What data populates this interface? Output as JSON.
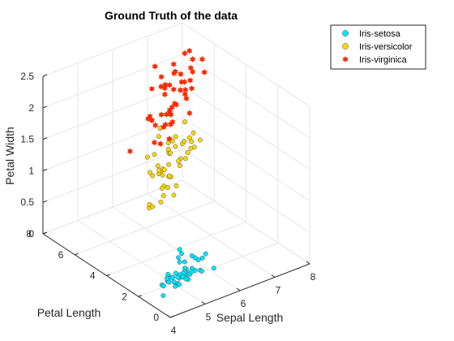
{
  "chart_data": {
    "type": "scatter",
    "title": "Ground Truth of the data",
    "xlabel": "Sepal Length",
    "ylabel": "Petal Length",
    "zlabel": "Petal Width",
    "xlim": [
      4,
      8
    ],
    "ylim": [
      0,
      8
    ],
    "zlim": [
      0,
      2.5
    ],
    "xticks": [
      "4",
      "5",
      "6",
      "7",
      "8"
    ],
    "yticks": [
      "0",
      "2",
      "4",
      "6",
      "8"
    ],
    "zticks": [
      "0",
      "0.5",
      "1",
      "1.5",
      "2",
      "2.5"
    ],
    "grid": true,
    "legend_position": "top-right",
    "series": [
      {
        "name": "Iris-setosa",
        "marker": "circle",
        "color": "#00e5ff",
        "points": [
          [
            5.1,
            1.4,
            0.2
          ],
          [
            4.9,
            1.4,
            0.2
          ],
          [
            4.7,
            1.3,
            0.2
          ],
          [
            4.6,
            1.5,
            0.2
          ],
          [
            5.0,
            1.4,
            0.2
          ],
          [
            5.4,
            1.7,
            0.4
          ],
          [
            4.6,
            1.4,
            0.3
          ],
          [
            5.0,
            1.5,
            0.2
          ],
          [
            4.4,
            1.4,
            0.2
          ],
          [
            4.9,
            1.5,
            0.1
          ],
          [
            5.4,
            1.5,
            0.2
          ],
          [
            4.8,
            1.6,
            0.2
          ],
          [
            4.8,
            1.4,
            0.1
          ],
          [
            4.3,
            1.1,
            0.1
          ],
          [
            5.8,
            1.2,
            0.2
          ],
          [
            5.7,
            1.5,
            0.4
          ],
          [
            5.4,
            1.3,
            0.4
          ],
          [
            5.1,
            1.4,
            0.3
          ],
          [
            5.7,
            1.7,
            0.3
          ],
          [
            5.1,
            1.5,
            0.3
          ],
          [
            5.4,
            1.7,
            0.2
          ],
          [
            5.1,
            1.5,
            0.4
          ],
          [
            4.6,
            1.0,
            0.2
          ],
          [
            5.1,
            1.7,
            0.5
          ],
          [
            4.8,
            1.9,
            0.2
          ],
          [
            5.0,
            1.6,
            0.2
          ],
          [
            5.0,
            1.6,
            0.4
          ],
          [
            5.2,
            1.5,
            0.2
          ],
          [
            5.2,
            1.4,
            0.2
          ],
          [
            4.7,
            1.6,
            0.2
          ],
          [
            4.8,
            1.6,
            0.2
          ],
          [
            5.4,
            1.5,
            0.4
          ],
          [
            5.2,
            1.5,
            0.1
          ],
          [
            5.5,
            1.4,
            0.2
          ],
          [
            4.9,
            1.5,
            0.2
          ],
          [
            5.0,
            1.2,
            0.2
          ],
          [
            5.5,
            1.3,
            0.2
          ],
          [
            4.9,
            1.4,
            0.1
          ],
          [
            4.4,
            1.3,
            0.2
          ],
          [
            5.1,
            1.5,
            0.2
          ],
          [
            5.0,
            1.3,
            0.3
          ],
          [
            4.5,
            1.3,
            0.3
          ],
          [
            4.4,
            1.3,
            0.2
          ],
          [
            5.0,
            1.6,
            0.6
          ],
          [
            5.1,
            1.9,
            0.4
          ],
          [
            4.8,
            1.4,
            0.3
          ],
          [
            5.1,
            1.6,
            0.2
          ],
          [
            4.6,
            1.4,
            0.2
          ],
          [
            5.3,
            1.5,
            0.2
          ],
          [
            5.0,
            1.4,
            0.2
          ]
        ]
      },
      {
        "name": "Iris-versicolor",
        "marker": "circle",
        "color": "#ffd700",
        "points": [
          [
            7.0,
            4.7,
            1.4
          ],
          [
            6.4,
            4.5,
            1.5
          ],
          [
            6.9,
            4.9,
            1.5
          ],
          [
            5.5,
            4.0,
            1.3
          ],
          [
            6.5,
            4.6,
            1.5
          ],
          [
            5.7,
            4.5,
            1.3
          ],
          [
            6.3,
            4.7,
            1.6
          ],
          [
            4.9,
            3.3,
            1.0
          ],
          [
            6.6,
            4.6,
            1.3
          ],
          [
            5.2,
            3.9,
            1.4
          ],
          [
            5.0,
            3.5,
            1.0
          ],
          [
            5.9,
            4.2,
            1.5
          ],
          [
            6.0,
            4.0,
            1.0
          ],
          [
            6.1,
            4.7,
            1.4
          ],
          [
            5.6,
            3.6,
            1.3
          ],
          [
            6.7,
            4.4,
            1.4
          ],
          [
            5.6,
            4.5,
            1.5
          ],
          [
            5.8,
            4.1,
            1.0
          ],
          [
            6.2,
            4.5,
            1.5
          ],
          [
            5.6,
            3.9,
            1.1
          ],
          [
            5.9,
            4.8,
            1.8
          ],
          [
            6.1,
            4.0,
            1.3
          ],
          [
            6.3,
            4.9,
            1.5
          ],
          [
            6.1,
            4.7,
            1.2
          ],
          [
            6.4,
            4.3,
            1.3
          ],
          [
            6.6,
            4.4,
            1.4
          ],
          [
            6.8,
            4.8,
            1.4
          ],
          [
            6.7,
            5.0,
            1.7
          ],
          [
            6.0,
            4.5,
            1.5
          ],
          [
            5.7,
            3.5,
            1.0
          ],
          [
            5.5,
            3.8,
            1.1
          ],
          [
            5.5,
            3.7,
            1.0
          ],
          [
            5.8,
            3.9,
            1.2
          ],
          [
            6.0,
            5.1,
            1.6
          ],
          [
            5.4,
            4.5,
            1.5
          ],
          [
            6.0,
            4.5,
            1.6
          ],
          [
            6.7,
            4.7,
            1.5
          ],
          [
            6.3,
            4.4,
            1.3
          ],
          [
            5.6,
            4.1,
            1.3
          ],
          [
            5.5,
            4.0,
            1.3
          ],
          [
            5.5,
            4.4,
            1.2
          ],
          [
            6.1,
            4.6,
            1.4
          ],
          [
            5.8,
            4.0,
            1.2
          ],
          [
            5.0,
            3.3,
            1.0
          ],
          [
            5.6,
            4.2,
            1.3
          ],
          [
            5.7,
            4.2,
            1.2
          ],
          [
            5.7,
            4.2,
            1.3
          ],
          [
            6.2,
            4.3,
            1.3
          ],
          [
            5.1,
            3.0,
            1.1
          ],
          [
            5.7,
            4.1,
            1.3
          ]
        ]
      },
      {
        "name": "Iris-virginica",
        "marker": "hexagram",
        "color": "#ff2a00",
        "points": [
          [
            6.3,
            6.0,
            2.5
          ],
          [
            5.8,
            5.1,
            1.9
          ],
          [
            7.1,
            5.9,
            2.1
          ],
          [
            6.3,
            5.6,
            1.8
          ],
          [
            6.5,
            5.8,
            2.2
          ],
          [
            7.6,
            6.6,
            2.1
          ],
          [
            4.9,
            4.5,
            1.7
          ],
          [
            7.3,
            6.3,
            1.8
          ],
          [
            6.7,
            5.8,
            1.8
          ],
          [
            7.2,
            6.1,
            2.5
          ],
          [
            6.5,
            5.1,
            2.0
          ],
          [
            6.4,
            5.3,
            1.9
          ],
          [
            6.8,
            5.5,
            2.1
          ],
          [
            5.7,
            5.0,
            2.0
          ],
          [
            5.8,
            5.1,
            2.4
          ],
          [
            6.4,
            5.3,
            2.3
          ],
          [
            6.5,
            5.5,
            1.8
          ],
          [
            7.7,
            6.7,
            2.2
          ],
          [
            7.7,
            6.9,
            2.3
          ],
          [
            6.0,
            5.0,
            1.5
          ],
          [
            6.9,
            5.7,
            2.3
          ],
          [
            5.6,
            4.9,
            2.0
          ],
          [
            7.7,
            6.7,
            2.0
          ],
          [
            6.3,
            4.9,
            1.8
          ],
          [
            6.7,
            5.7,
            2.1
          ],
          [
            7.2,
            6.0,
            1.8
          ],
          [
            6.2,
            4.8,
            1.8
          ],
          [
            6.1,
            4.9,
            1.8
          ],
          [
            6.4,
            5.6,
            2.1
          ],
          [
            7.2,
            5.8,
            1.6
          ],
          [
            7.4,
            6.1,
            1.9
          ],
          [
            7.9,
            6.4,
            2.0
          ],
          [
            6.4,
            5.6,
            2.2
          ],
          [
            6.3,
            5.1,
            1.5
          ],
          [
            6.1,
            5.6,
            1.4
          ],
          [
            7.7,
            6.1,
            2.3
          ],
          [
            6.3,
            5.6,
            2.4
          ],
          [
            6.4,
            5.5,
            1.8
          ],
          [
            6.0,
            4.8,
            1.8
          ],
          [
            6.9,
            5.4,
            2.1
          ],
          [
            6.7,
            5.6,
            2.4
          ],
          [
            6.9,
            5.1,
            2.3
          ],
          [
            5.8,
            5.1,
            1.9
          ],
          [
            6.8,
            5.9,
            2.3
          ],
          [
            6.7,
            5.7,
            2.5
          ],
          [
            6.7,
            5.2,
            2.3
          ],
          [
            6.3,
            5.0,
            1.9
          ],
          [
            6.5,
            5.2,
            2.0
          ],
          [
            6.2,
            5.4,
            2.3
          ],
          [
            5.9,
            5.1,
            1.8
          ]
        ]
      }
    ]
  }
}
